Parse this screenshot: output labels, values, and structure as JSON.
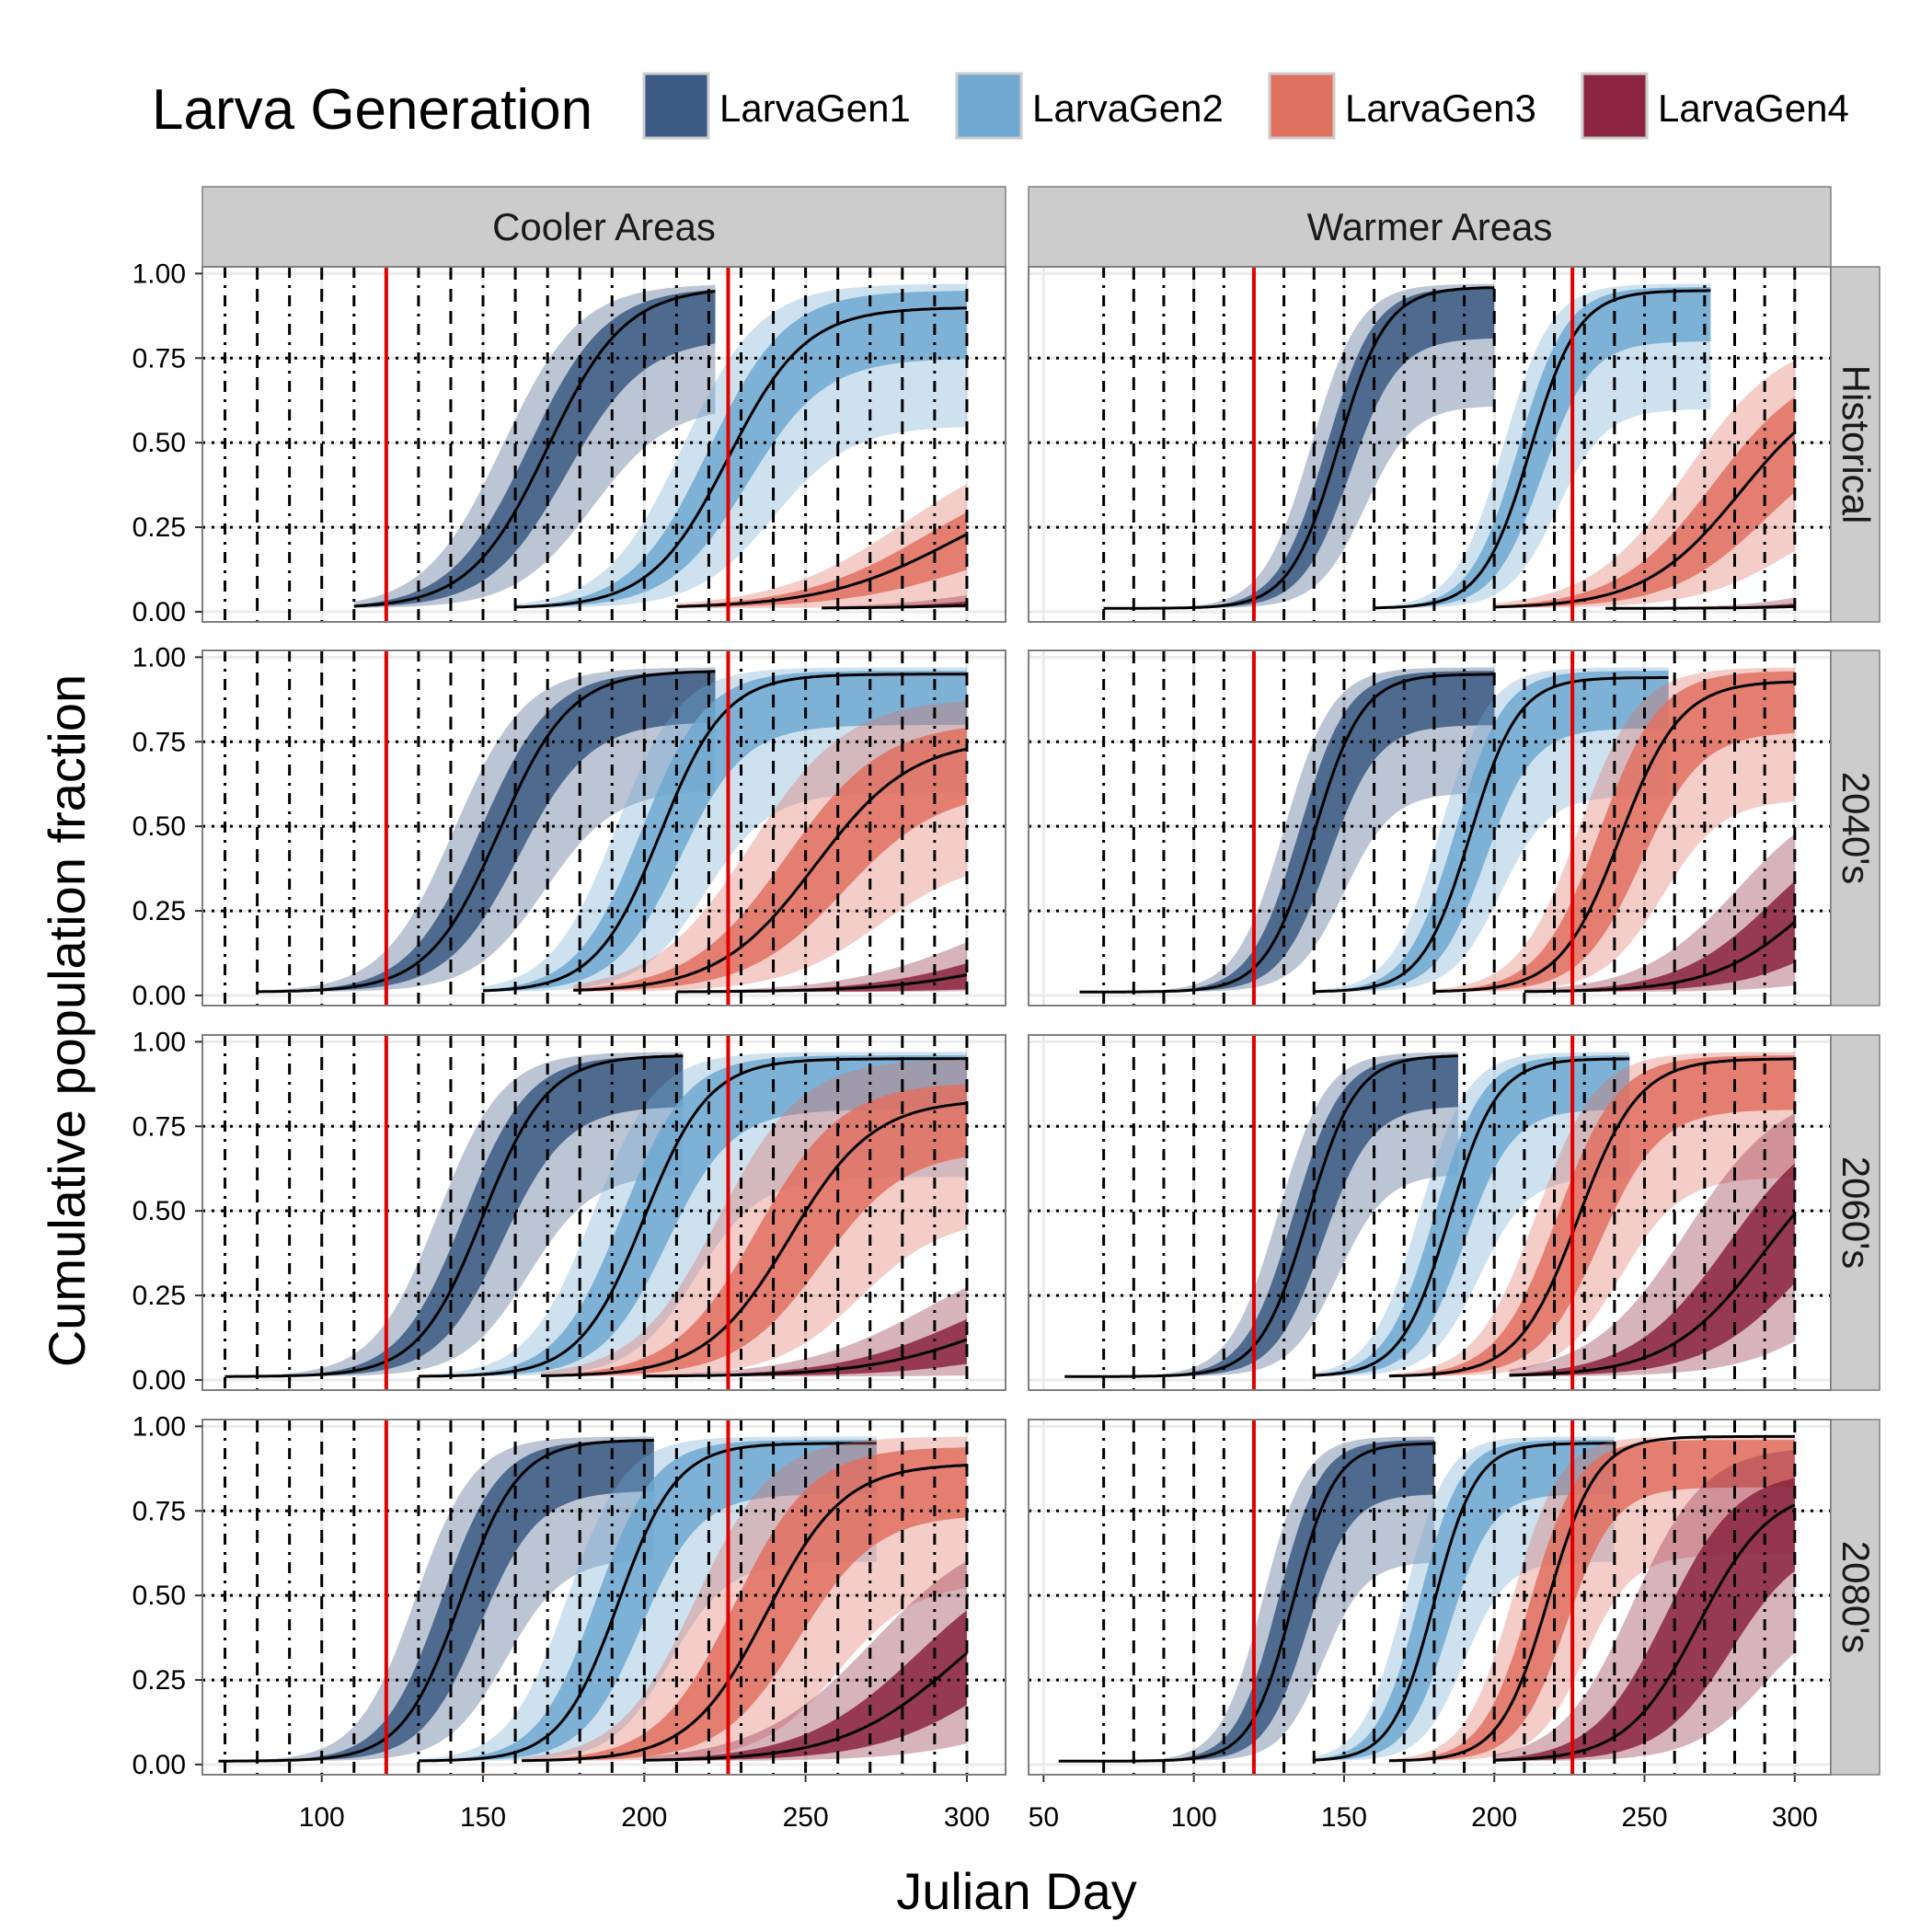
{
  "chart_data": {
    "type": "area",
    "xlabel": "Julian Day",
    "ylabel": "Cumulative population fraction",
    "legend": {
      "title": "Larva Generation",
      "placement": "top",
      "entries": [
        {
          "name": "LarvaGen1",
          "color": "#3b5a83"
        },
        {
          "name": "LarvaGen2",
          "color": "#6fa8d0"
        },
        {
          "name": "LarvaGen3",
          "color": "#e07060"
        },
        {
          "name": "LarvaGen4",
          "color": "#8b2540"
        }
      ]
    },
    "columns": [
      "Cooler Areas",
      "Warmer Areas"
    ],
    "rows": [
      "Historical",
      "2040's",
      "2060's",
      "2080's"
    ],
    "x_axes": {
      "Cooler Areas": {
        "xlim": [
          63,
          312
        ],
        "ticks": [
          100,
          150,
          200,
          250,
          300
        ]
      },
      "Warmer Areas": {
        "xlim": [
          45,
          312
        ],
        "ticks": [
          50,
          100,
          150,
          200,
          250,
          300
        ]
      }
    },
    "ylim": [
      -0.03,
      1.02
    ],
    "yticks": [
      "0.00",
      "0.25",
      "0.50",
      "0.75",
      "1.00"
    ],
    "vertical_red_lines": [
      120,
      226
    ],
    "grid": true,
    "series": [
      {
        "col": "Cooler Areas",
        "row": "Historical",
        "generation": "LarvaGen1",
        "start": 110,
        "end": 222,
        "mid": 170,
        "scale": 12,
        "top": 0.96,
        "outer": 14,
        "inner": 6
      },
      {
        "col": "Cooler Areas",
        "row": "Historical",
        "generation": "LarvaGen2",
        "start": 160,
        "end": 300,
        "mid": 226,
        "scale": 12,
        "top": 0.9,
        "outer": 14,
        "inner": 6
      },
      {
        "col": "Cooler Areas",
        "row": "Historical",
        "generation": "LarvaGen3",
        "start": 210,
        "end": 300,
        "mid": 295,
        "scale": 20,
        "top": 0.4,
        "outer": 14,
        "inner": 7
      },
      {
        "col": "Cooler Areas",
        "row": "Historical",
        "generation": "LarvaGen4",
        "start": 255,
        "end": 300,
        "mid": 330,
        "scale": 20,
        "top": 0.06,
        "outer": 6,
        "inner": 3
      },
      {
        "col": "Warmer Areas",
        "row": "Historical",
        "generation": "LarvaGen1",
        "start": 70,
        "end": 200,
        "mid": 148,
        "scale": 8,
        "top": 0.96,
        "outer": 9,
        "inner": 4
      },
      {
        "col": "Warmer Areas",
        "row": "Historical",
        "generation": "LarvaGen2",
        "start": 160,
        "end": 272,
        "mid": 212,
        "scale": 8,
        "top": 0.95,
        "outer": 9,
        "inner": 4
      },
      {
        "col": "Warmer Areas",
        "row": "Historical",
        "generation": "LarvaGen3",
        "start": 200,
        "end": 300,
        "mid": 282,
        "scale": 16,
        "top": 0.7,
        "outer": 18,
        "inner": 9
      },
      {
        "col": "Warmer Areas",
        "row": "Historical",
        "generation": "LarvaGen4",
        "start": 237,
        "end": 300,
        "mid": 330,
        "scale": 16,
        "top": 0.05,
        "outer": 8,
        "inner": 4
      },
      {
        "col": "Cooler Areas",
        "row": "2040's",
        "generation": "LarvaGen1",
        "start": 80,
        "end": 222,
        "mid": 155,
        "scale": 11,
        "top": 0.96,
        "outer": 14,
        "inner": 6
      },
      {
        "col": "Cooler Areas",
        "row": "2040's",
        "generation": "LarvaGen2",
        "start": 150,
        "end": 300,
        "mid": 205,
        "scale": 10,
        "top": 0.95,
        "outer": 14,
        "inner": 6
      },
      {
        "col": "Cooler Areas",
        "row": "2040's",
        "generation": "LarvaGen3",
        "start": 178,
        "end": 300,
        "mid": 253,
        "scale": 15,
        "top": 0.76,
        "outer": 20,
        "inner": 9
      },
      {
        "col": "Cooler Areas",
        "row": "2040's",
        "generation": "LarvaGen4",
        "start": 210,
        "end": 300,
        "mid": 320,
        "scale": 20,
        "top": 0.2,
        "outer": 18,
        "inner": 8
      },
      {
        "col": "Warmer Areas",
        "row": "2040's",
        "generation": "LarvaGen1",
        "start": 62,
        "end": 200,
        "mid": 140,
        "scale": 8,
        "top": 0.95,
        "outer": 10,
        "inner": 5
      },
      {
        "col": "Warmer Areas",
        "row": "2040's",
        "generation": "LarvaGen2",
        "start": 140,
        "end": 258,
        "mid": 192,
        "scale": 8,
        "top": 0.94,
        "outer": 10,
        "inner": 5
      },
      {
        "col": "Warmer Areas",
        "row": "2040's",
        "generation": "LarvaGen3",
        "start": 180,
        "end": 300,
        "mid": 242,
        "scale": 10,
        "top": 0.93,
        "outer": 14,
        "inner": 7
      },
      {
        "col": "Warmer Areas",
        "row": "2040's",
        "generation": "LarvaGen4",
        "start": 210,
        "end": 300,
        "mid": 305,
        "scale": 16,
        "top": 0.5,
        "outer": 24,
        "inner": 12
      },
      {
        "col": "Cooler Areas",
        "row": "2060's",
        "generation": "LarvaGen1",
        "start": 70,
        "end": 212,
        "mid": 150,
        "scale": 10,
        "top": 0.96,
        "outer": 14,
        "inner": 6
      },
      {
        "col": "Cooler Areas",
        "row": "2060's",
        "generation": "LarvaGen2",
        "start": 130,
        "end": 300,
        "mid": 200,
        "scale": 10,
        "top": 0.95,
        "outer": 16,
        "inner": 7
      },
      {
        "col": "Cooler Areas",
        "row": "2060's",
        "generation": "LarvaGen3",
        "start": 168,
        "end": 300,
        "mid": 245,
        "scale": 13,
        "top": 0.83,
        "outer": 22,
        "inner": 10
      },
      {
        "col": "Cooler Areas",
        "row": "2060's",
        "generation": "LarvaGen4",
        "start": 200,
        "end": 300,
        "mid": 310,
        "scale": 20,
        "top": 0.3,
        "outer": 22,
        "inner": 10
      },
      {
        "col": "Warmer Areas",
        "row": "2060's",
        "generation": "LarvaGen1",
        "start": 57,
        "end": 188,
        "mid": 138,
        "scale": 8,
        "top": 0.96,
        "outer": 10,
        "inner": 5
      },
      {
        "col": "Warmer Areas",
        "row": "2060's",
        "generation": "LarvaGen2",
        "start": 140,
        "end": 245,
        "mid": 185,
        "scale": 8,
        "top": 0.95,
        "outer": 10,
        "inner": 5
      },
      {
        "col": "Warmer Areas",
        "row": "2060's",
        "generation": "LarvaGen3",
        "start": 165,
        "end": 300,
        "mid": 228,
        "scale": 10,
        "top": 0.95,
        "outer": 14,
        "inner": 7
      },
      {
        "col": "Warmer Areas",
        "row": "2060's",
        "generation": "LarvaGen4",
        "start": 205,
        "end": 300,
        "mid": 290,
        "scale": 16,
        "top": 0.75,
        "outer": 26,
        "inner": 12
      },
      {
        "col": "Cooler Areas",
        "row": "2080's",
        "generation": "LarvaGen1",
        "start": 68,
        "end": 203,
        "mid": 143,
        "scale": 9,
        "top": 0.96,
        "outer": 14,
        "inner": 6
      },
      {
        "col": "Cooler Areas",
        "row": "2080's",
        "generation": "LarvaGen2",
        "start": 130,
        "end": 272,
        "mid": 192,
        "scale": 9,
        "top": 0.95,
        "outer": 16,
        "inner": 7
      },
      {
        "col": "Cooler Areas",
        "row": "2080's",
        "generation": "LarvaGen3",
        "start": 162,
        "end": 300,
        "mid": 238,
        "scale": 12,
        "top": 0.89,
        "outer": 22,
        "inner": 10
      },
      {
        "col": "Cooler Areas",
        "row": "2080's",
        "generation": "LarvaGen4",
        "start": 200,
        "end": 300,
        "mid": 297,
        "scale": 18,
        "top": 0.6,
        "outer": 26,
        "inner": 12
      },
      {
        "col": "Warmer Areas",
        "row": "2080's",
        "generation": "LarvaGen1",
        "start": 55,
        "end": 180,
        "mid": 133,
        "scale": 7,
        "top": 0.95,
        "outer": 10,
        "inner": 5
      },
      {
        "col": "Warmer Areas",
        "row": "2080's",
        "generation": "LarvaGen2",
        "start": 140,
        "end": 240,
        "mid": 180,
        "scale": 7,
        "top": 0.95,
        "outer": 10,
        "inner": 5
      },
      {
        "col": "Warmer Areas",
        "row": "2080's",
        "generation": "LarvaGen3",
        "start": 165,
        "end": 300,
        "mid": 218,
        "scale": 8,
        "top": 0.97,
        "outer": 12,
        "inner": 6
      },
      {
        "col": "Warmer Areas",
        "row": "2080's",
        "generation": "LarvaGen4",
        "start": 200,
        "end": 300,
        "mid": 268,
        "scale": 12,
        "top": 0.82,
        "outer": 22,
        "inner": 11
      }
    ]
  }
}
